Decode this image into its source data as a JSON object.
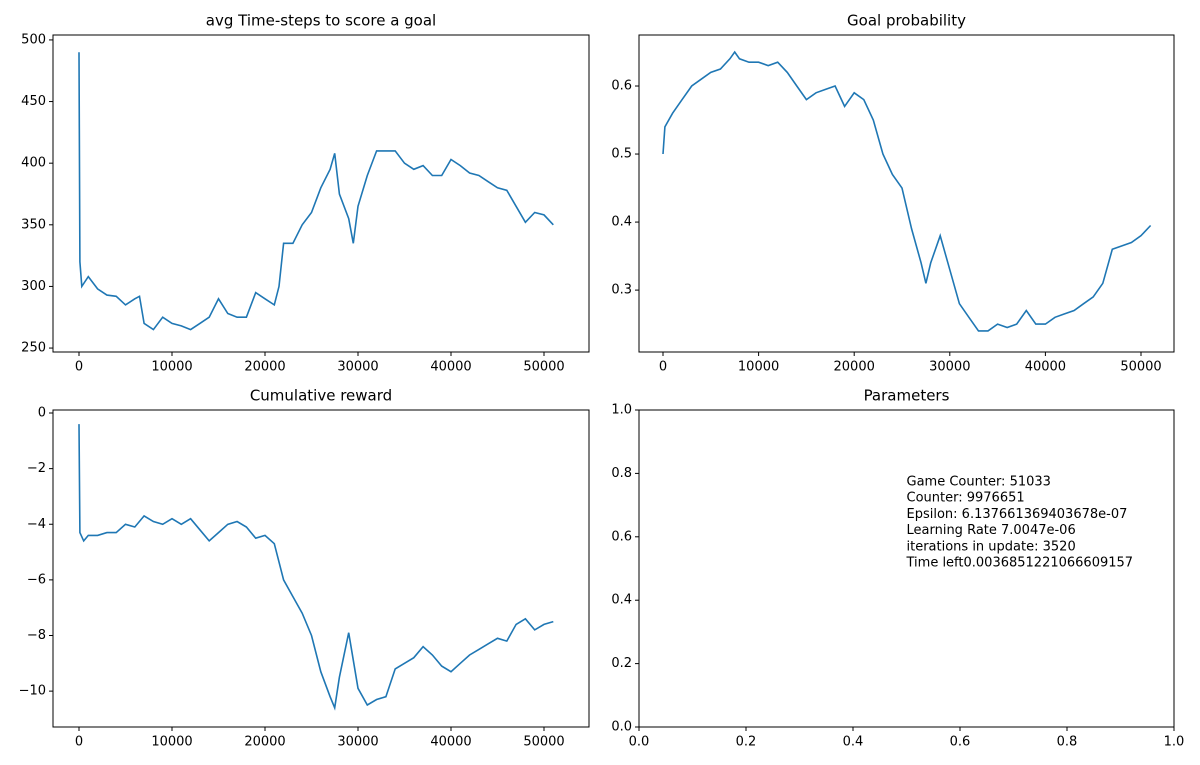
{
  "chart_data": [
    {
      "type": "line",
      "title": "avg Time-steps to score a goal",
      "color": "#1f77b4",
      "x": [
        0,
        100,
        300,
        1000,
        2000,
        3000,
        4000,
        5000,
        6000,
        6500,
        7000,
        8000,
        9000,
        10000,
        11000,
        12000,
        13000,
        14000,
        15000,
        16000,
        17000,
        18000,
        19000,
        20000,
        21000,
        21500,
        22000,
        23000,
        24000,
        25000,
        26000,
        27000,
        27500,
        28000,
        29000,
        29500,
        30000,
        31000,
        32000,
        33000,
        34000,
        35000,
        36000,
        37000,
        38000,
        39000,
        40000,
        41000,
        42000,
        43000,
        44000,
        45000,
        46000,
        47000,
        48000,
        49000,
        50000,
        51000
      ],
      "values": [
        490,
        320,
        300,
        308,
        298,
        293,
        292,
        285,
        290,
        292,
        270,
        265,
        275,
        270,
        268,
        265,
        270,
        275,
        290,
        278,
        275,
        275,
        295,
        290,
        285,
        300,
        335,
        335,
        350,
        360,
        380,
        395,
        408,
        375,
        355,
        335,
        365,
        390,
        410,
        410,
        410,
        400,
        395,
        398,
        390,
        390,
        403,
        398,
        392,
        390,
        385,
        380,
        378,
        365,
        352,
        360,
        358,
        350
      ],
      "xlim": [
        -2796,
        54839
      ],
      "xticks": [
        0,
        10000,
        20000,
        30000,
        40000,
        50000
      ],
      "ylim": [
        246.8,
        504
      ],
      "yticks": [
        250,
        300,
        350,
        400,
        450,
        500
      ]
    },
    {
      "type": "line",
      "title": "Goal probability",
      "color": "#1f77b4",
      "x": [
        0,
        200,
        1000,
        2000,
        3000,
        4000,
        5000,
        6000,
        7000,
        7500,
        8000,
        9000,
        10000,
        11000,
        12000,
        13000,
        14000,
        15000,
        16000,
        17000,
        18000,
        19000,
        20000,
        21000,
        22000,
        23000,
        24000,
        25000,
        26000,
        27000,
        27500,
        28000,
        29000,
        30000,
        31000,
        32000,
        33000,
        34000,
        35000,
        36000,
        37000,
        38000,
        39000,
        40000,
        41000,
        42000,
        43000,
        44000,
        45000,
        46000,
        47000,
        48000,
        49000,
        50000,
        51000
      ],
      "values": [
        0.5,
        0.54,
        0.56,
        0.58,
        0.6,
        0.61,
        0.62,
        0.625,
        0.64,
        0.65,
        0.64,
        0.635,
        0.635,
        0.63,
        0.635,
        0.62,
        0.6,
        0.58,
        0.59,
        0.595,
        0.6,
        0.57,
        0.59,
        0.58,
        0.55,
        0.5,
        0.47,
        0.45,
        0.39,
        0.34,
        0.31,
        0.34,
        0.38,
        0.33,
        0.28,
        0.26,
        0.24,
        0.24,
        0.25,
        0.245,
        0.25,
        0.27,
        0.25,
        0.25,
        0.26,
        0.265,
        0.27,
        0.28,
        0.29,
        0.31,
        0.36,
        0.365,
        0.37,
        0.38,
        0.395
      ],
      "xlim": [
        -2510,
        53452
      ],
      "xticks": [
        0,
        10000,
        20000,
        30000,
        40000,
        50000
      ],
      "ylim": [
        0.209,
        0.675
      ],
      "yticks": [
        0.3,
        0.4,
        0.5,
        0.6
      ]
    },
    {
      "type": "line",
      "title": "Cumulative reward",
      "color": "#1f77b4",
      "x": [
        0,
        100,
        500,
        1000,
        2000,
        3000,
        4000,
        5000,
        6000,
        7000,
        8000,
        9000,
        10000,
        11000,
        12000,
        13000,
        14000,
        15000,
        16000,
        17000,
        18000,
        19000,
        20000,
        21000,
        22000,
        23000,
        24000,
        25000,
        26000,
        27000,
        27500,
        28000,
        29000,
        30000,
        31000,
        32000,
        33000,
        34000,
        35000,
        36000,
        37000,
        38000,
        39000,
        40000,
        41000,
        42000,
        43000,
        44000,
        45000,
        46000,
        47000,
        48000,
        49000,
        50000,
        51000
      ],
      "values": [
        -0.4,
        -4.3,
        -4.6,
        -4.4,
        -4.4,
        -4.3,
        -4.3,
        -4.0,
        -4.1,
        -3.7,
        -3.9,
        -4.0,
        -3.8,
        -4.0,
        -3.8,
        -4.2,
        -4.6,
        -4.3,
        -4.0,
        -3.9,
        -4.1,
        -4.5,
        -4.4,
        -4.7,
        -6.0,
        -6.6,
        -7.2,
        -8.0,
        -9.3,
        -10.2,
        -10.6,
        -9.5,
        -7.9,
        -9.9,
        -10.5,
        -10.3,
        -10.2,
        -9.2,
        -9.0,
        -8.8,
        -8.4,
        -8.7,
        -9.1,
        -9.3,
        -9.0,
        -8.7,
        -8.5,
        -8.3,
        -8.1,
        -8.2,
        -7.6,
        -7.4,
        -7.8,
        -7.6,
        -7.5
      ],
      "xlim": [
        -2796,
        54839
      ],
      "xticks": [
        0,
        10000,
        20000,
        30000,
        40000,
        50000
      ],
      "ylim": [
        -11.29,
        0.108
      ],
      "yticks": [
        {
          "value": -10,
          "label": "−10"
        },
        {
          "value": -8,
          "label": "−8"
        },
        {
          "value": -6,
          "label": "−6"
        },
        {
          "value": -4,
          "label": "−4"
        },
        {
          "value": -2,
          "label": "−2"
        },
        0
      ]
    },
    {
      "type": "text",
      "title": "Parameters",
      "annotations": [
        "Game Counter: 51033",
        "Counter: 9976651",
        "Epsilon: 6.137661369403678e-07",
        "Learning Rate 7.0047e-06",
        "iterations in update: 3520",
        "Time left0.0036851221066609157"
      ],
      "xlim": [
        0,
        1
      ],
      "xticks": [
        {
          "value": 0,
          "label": "0.0"
        },
        {
          "value": 0.2,
          "label": "0.2"
        },
        {
          "value": 0.4,
          "label": "0.4"
        },
        {
          "value": 0.6,
          "label": "0.6"
        },
        {
          "value": 0.8,
          "label": "0.8"
        },
        {
          "value": 1,
          "label": "1.0"
        }
      ],
      "ylim": [
        0,
        1
      ],
      "yticks": [
        {
          "value": 0,
          "label": "0.0"
        },
        {
          "value": 0.2,
          "label": "0.2"
        },
        {
          "value": 0.4,
          "label": "0.4"
        },
        {
          "value": 0.6,
          "label": "0.6"
        },
        {
          "value": 0.8,
          "label": "0.8"
        },
        {
          "value": 1,
          "label": "1.0"
        }
      ]
    }
  ]
}
